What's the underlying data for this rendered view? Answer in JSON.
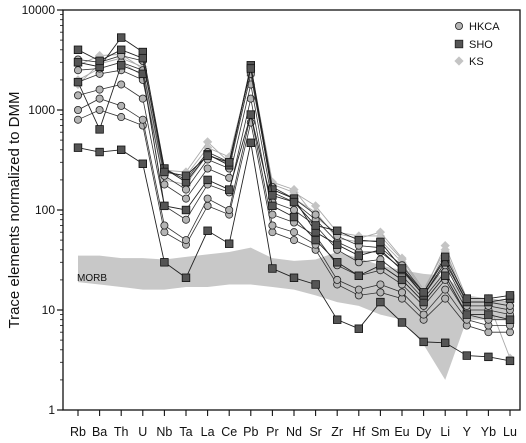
{
  "chart_data": {
    "type": "line",
    "ylabel": "Trace elements normalized to DMM",
    "yscale": "log",
    "ylim": [
      1,
      10000
    ],
    "ytick_labels": [
      "1",
      "10",
      "100",
      "1000",
      "10000"
    ],
    "categories": [
      "Rb",
      "Ba",
      "Th",
      "U",
      "Nb",
      "Ta",
      "La",
      "Ce",
      "Pb",
      "Pr",
      "Nd",
      "Sr",
      "Zr",
      "Hf",
      "Sm",
      "Eu",
      "Dy",
      "Li",
      "Y",
      "Yb",
      "Lu"
    ],
    "legend": {
      "position": "top-right",
      "entries": [
        {
          "label": "HKCA",
          "marker": "circle",
          "color": "#b4b4b4"
        },
        {
          "label": "SHO",
          "marker": "square",
          "color": "#555555"
        },
        {
          "label": "KS",
          "marker": "diamond",
          "color": "#c4c4c4"
        }
      ]
    },
    "band": {
      "label": "MORB",
      "color": "#c8c8c8",
      "upper": [
        35,
        35,
        33,
        33,
        32,
        34,
        36,
        38,
        42,
        33,
        31,
        32,
        38,
        33,
        28,
        25,
        23,
        22,
        14,
        13,
        12
      ],
      "lower": [
        19,
        18,
        17,
        16,
        16,
        17,
        17,
        18,
        18,
        17,
        16,
        14,
        12,
        11,
        9,
        8,
        4.5,
        2,
        8,
        8,
        8
      ]
    },
    "series": [
      {
        "group": "HKCA",
        "values": [
          800,
          1000,
          850,
          700,
          60,
          45,
          110,
          90,
          750,
          60,
          50,
          40,
          18,
          14,
          15,
          13,
          8,
          13,
          7,
          6,
          6
        ]
      },
      {
        "group": "HKCA",
        "values": [
          1000,
          1300,
          1100,
          800,
          70,
          50,
          130,
          100,
          900,
          70,
          60,
          45,
          20,
          16,
          18,
          15,
          9,
          16,
          8,
          7,
          7
        ]
      },
      {
        "group": "HKCA",
        "values": [
          1400,
          1600,
          1800,
          1300,
          110,
          80,
          180,
          150,
          1300,
          90,
          75,
          55,
          28,
          22,
          25,
          18,
          11,
          20,
          9,
          8,
          8
        ]
      },
      {
        "group": "HKCA",
        "values": [
          1900,
          2300,
          2500,
          2000,
          180,
          130,
          260,
          210,
          1800,
          120,
          100,
          70,
          40,
          30,
          32,
          22,
          13,
          24,
          10,
          10,
          9
        ]
      },
      {
        "group": "HKCA",
        "values": [
          2500,
          2600,
          3000,
          2500,
          220,
          160,
          320,
          260,
          2300,
          150,
          120,
          80,
          48,
          38,
          38,
          26,
          14,
          28,
          11,
          11,
          10
        ]
      },
      {
        "group": "HKCA",
        "values": [
          3200,
          3000,
          3500,
          3100,
          260,
          200,
          380,
          300,
          2600,
          170,
          130,
          90,
          55,
          44,
          42,
          28,
          15,
          32,
          12,
          12,
          11
        ]
      },
      {
        "group": "SHO",
        "values": [
          420,
          380,
          400,
          290,
          30,
          21,
          62,
          46,
          470,
          26,
          21,
          18,
          8,
          6.5,
          12,
          7.5,
          4.8,
          4.7,
          3.5,
          3.4,
          3.1
        ]
      },
      {
        "group": "SHO",
        "values": [
          1900,
          640,
          2800,
          2300,
          110,
          100,
          200,
          160,
          900,
          110,
          85,
          50,
          30,
          22,
          28,
          20,
          12,
          22,
          9,
          9,
          8
        ]
      },
      {
        "group": "SHO",
        "values": [
          3000,
          2700,
          5300,
          3800,
          260,
          190,
          360,
          280,
          2800,
          160,
          130,
          60,
          45,
          35,
          40,
          25,
          14,
          30,
          12,
          12,
          13
        ]
      },
      {
        "group": "SHO",
        "values": [
          4000,
          3100,
          4000,
          3300,
          240,
          220,
          350,
          300,
          2600,
          140,
          120,
          70,
          62,
          50,
          48,
          26,
          15,
          34,
          13,
          13,
          14
        ]
      },
      {
        "group": "KS",
        "values": [
          2800,
          3500,
          3600,
          2600,
          240,
          220,
          420,
          340,
          2500,
          180,
          150,
          110,
          60,
          55,
          55,
          32,
          15,
          44,
          13,
          13,
          12
        ]
      },
      {
        "group": "KS",
        "values": [
          2000,
          2600,
          3000,
          2200,
          200,
          180,
          360,
          290,
          2200,
          160,
          130,
          95,
          52,
          48,
          50,
          30,
          14,
          38,
          12,
          12,
          11
        ]
      },
      {
        "group": "KS",
        "values": [
          1800,
          2900,
          3300,
          2700,
          250,
          240,
          480,
          300,
          2700,
          190,
          160,
          85,
          58,
          52,
          60,
          33,
          16,
          40,
          12,
          12,
          3.3
        ]
      }
    ]
  }
}
